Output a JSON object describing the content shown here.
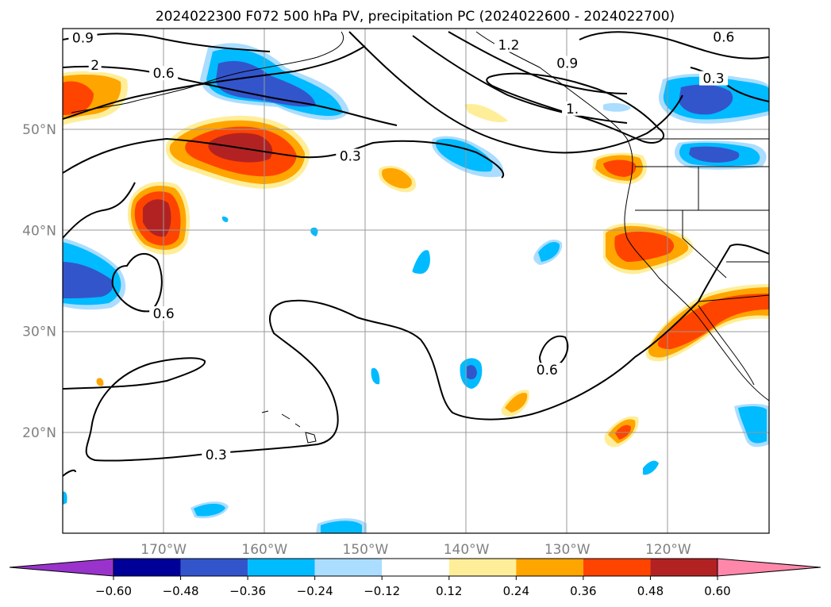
{
  "title": "2024022300 F072 500 hPa PV, precipitation PC (2024022600 - 2024022700)",
  "map": {
    "lon_range": [
      -180,
      -110
    ],
    "lat_range": [
      10,
      60
    ],
    "lon_ticks": [
      {
        "value": -170,
        "label": "170°W"
      },
      {
        "value": -160,
        "label": "160°W"
      },
      {
        "value": -150,
        "label": "150°W"
      },
      {
        "value": -140,
        "label": "140°W"
      },
      {
        "value": -130,
        "label": "130°W"
      },
      {
        "value": -120,
        "label": "120°W"
      }
    ],
    "lat_ticks": [
      {
        "value": 20,
        "label": "20°N"
      },
      {
        "value": 30,
        "label": "30°N"
      },
      {
        "value": 40,
        "label": "40°N"
      },
      {
        "value": 50,
        "label": "50°N"
      }
    ],
    "grid": true
  },
  "contour_labels": [
    {
      "text": "0.9",
      "lon": -178.0,
      "lat": 59.0
    },
    {
      "text": "2",
      "lon": -176.8,
      "lat": 56.3
    },
    {
      "text": "0.6",
      "lon": -170.0,
      "lat": 55.5
    },
    {
      "text": "0.3",
      "lon": -151.5,
      "lat": 47.3
    },
    {
      "text": "1.2",
      "lon": -135.8,
      "lat": 58.3
    },
    {
      "text": "0.9",
      "lon": -130.0,
      "lat": 56.5
    },
    {
      "text": "1.",
      "lon": -129.5,
      "lat": 52.0
    },
    {
      "text": "0.6",
      "lon": -114.5,
      "lat": 59.1
    },
    {
      "text": "0.3",
      "lon": -115.5,
      "lat": 55.0
    },
    {
      "text": "0.6",
      "lon": -170.0,
      "lat": 31.7
    },
    {
      "text": "0.6",
      "lon": -132.0,
      "lat": 26.1
    },
    {
      "text": "0.3",
      "lon": -164.8,
      "lat": 17.7
    }
  ],
  "colorbar": {
    "levels": [
      "−0.60",
      "−0.48",
      "−0.36",
      "−0.24",
      "−0.12",
      "0.12",
      "0.24",
      "0.36",
      "0.48",
      "0.60"
    ],
    "colors": [
      "#9933cc",
      "#000099",
      "#3355cc",
      "#00bbff",
      "#aaddff",
      "#ffffff",
      "#ffee99",
      "#ffa500",
      "#ff4400",
      "#b22222",
      "#ff88aa"
    ]
  }
}
